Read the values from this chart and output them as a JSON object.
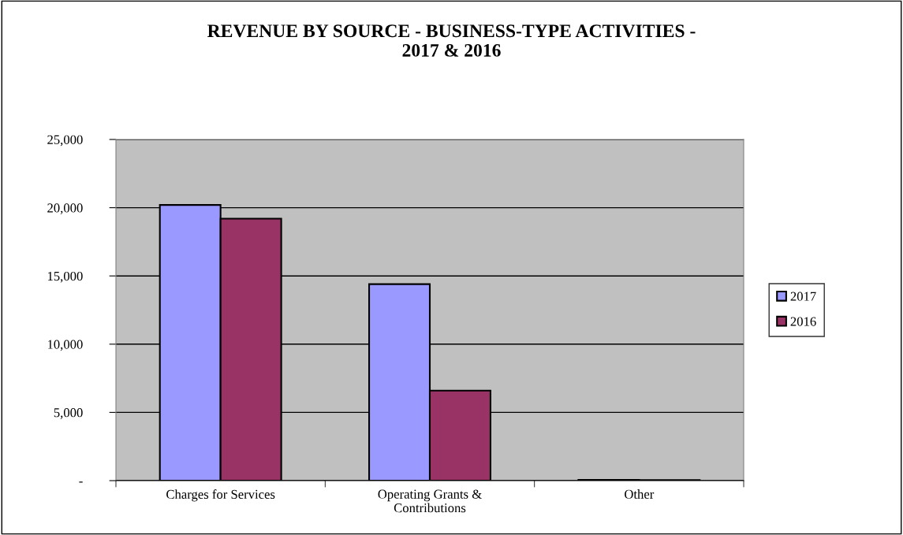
{
  "chart_data": {
    "type": "bar",
    "title": "REVENUE BY SOURCE - BUSINESS-TYPE ACTIVITIES -\n2017 & 2016",
    "categories": [
      "Charges for Services",
      "Operating Grants &\nContributions",
      "Other"
    ],
    "series": [
      {
        "name": "2017",
        "color": "#9999ff",
        "values": [
          20200,
          14400,
          60
        ]
      },
      {
        "name": "2016",
        "color": "#993366",
        "values": [
          19200,
          6600,
          40
        ]
      }
    ],
    "ylim": [
      0,
      25000
    ],
    "yticks": [
      {
        "value": 0,
        "label": "-"
      },
      {
        "value": 5000,
        "label": "5,000"
      },
      {
        "value": 10000,
        "label": "10,000"
      },
      {
        "value": 15000,
        "label": "15,000"
      },
      {
        "value": 20000,
        "label": "20,000"
      },
      {
        "value": 25000,
        "label": "25,000"
      }
    ],
    "grid": "y",
    "legend": "right"
  }
}
